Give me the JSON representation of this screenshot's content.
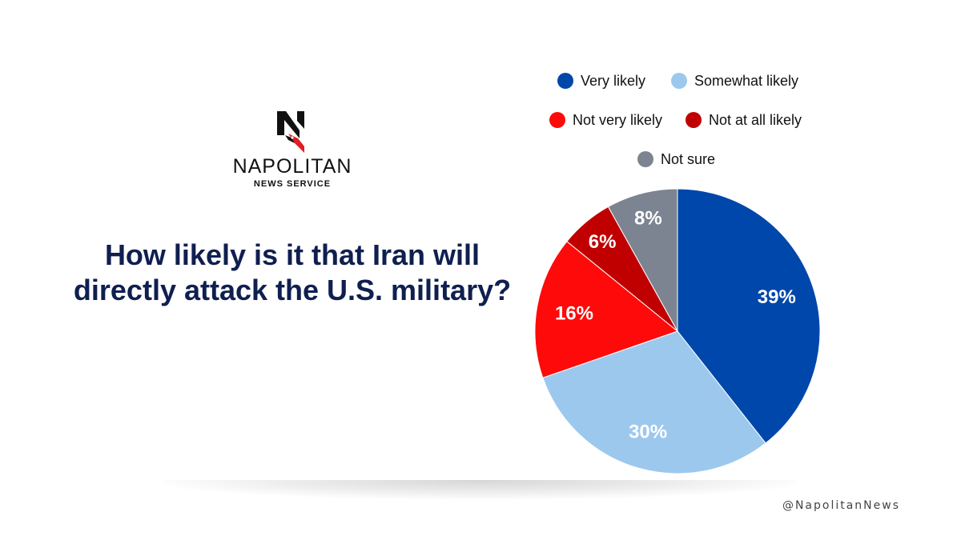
{
  "brand": {
    "name": "NAPOLITAN",
    "subtitle": "NEWS SERVICE",
    "mark_letter": "N",
    "handle": "@NapolitanNews"
  },
  "question": "How likely is it that Iran will directly attack the U.S. military?",
  "colors": {
    "very_likely": "#0047ab",
    "somewhat_likely": "#9dc8ee",
    "not_very_likely": "#ff0a0a",
    "not_at_all_likely": "#c00000",
    "not_sure": "#7d8491",
    "title": "#0f1f4f"
  },
  "chart_data": {
    "type": "pie",
    "title": "",
    "legend_position": "top",
    "slices": [
      {
        "name": "Very likely",
        "value": 39,
        "label": "39%",
        "color": "#0047ab"
      },
      {
        "name": "Somewhat likely",
        "value": 30,
        "label": "30%",
        "color": "#9dc8ee"
      },
      {
        "name": "Not very likely",
        "value": 16,
        "label": "16%",
        "color": "#ff0a0a"
      },
      {
        "name": "Not at all likely",
        "value": 6,
        "label": "6%",
        "color": "#c00000"
      },
      {
        "name": "Not sure",
        "value": 8,
        "label": "8%",
        "color": "#7d8491"
      }
    ]
  }
}
